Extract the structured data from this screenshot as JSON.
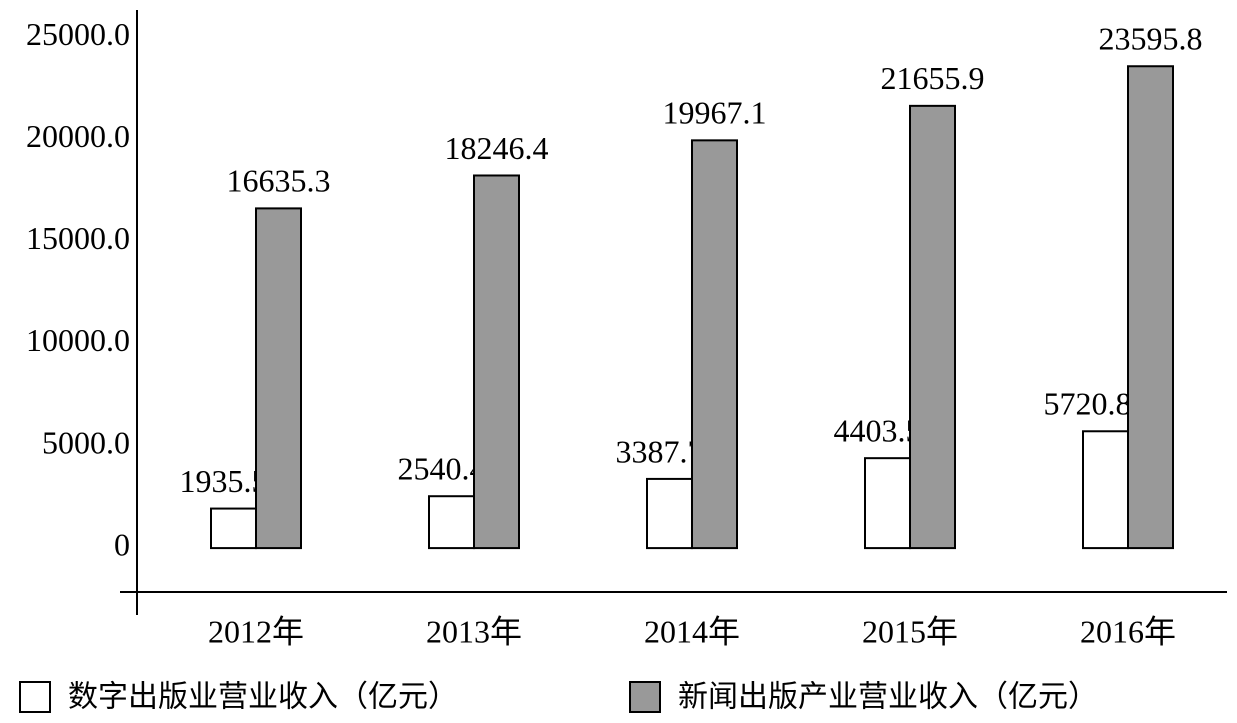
{
  "chart_data": {
    "type": "bar",
    "categories": [
      "2012年",
      "2013年",
      "2014年",
      "2015年",
      "2016年"
    ],
    "series": [
      {
        "name": "数字出版业营业收入（亿元）",
        "color": "#ffffff",
        "values": [
          1935.5,
          2540.4,
          3387.7,
          4403.5,
          5720.85
        ]
      },
      {
        "name": "新闻出版产业营业收入（亿元）",
        "color": "#999999",
        "values": [
          16635.3,
          18246.4,
          19967.1,
          21655.9,
          23595.8
        ]
      }
    ],
    "ylim": [
      -2150,
      26350
    ],
    "yticks": [
      0,
      {
        "value": 5000,
        "label": "5000.0"
      },
      {
        "value": 10000,
        "label": "10000.0"
      },
      {
        "value": 15000,
        "label": "15000.0"
      },
      {
        "value": 20000,
        "label": "20000.0"
      },
      {
        "value": 25000,
        "label": "25000.0"
      }
    ],
    "grid": false,
    "legend": "bottom"
  }
}
